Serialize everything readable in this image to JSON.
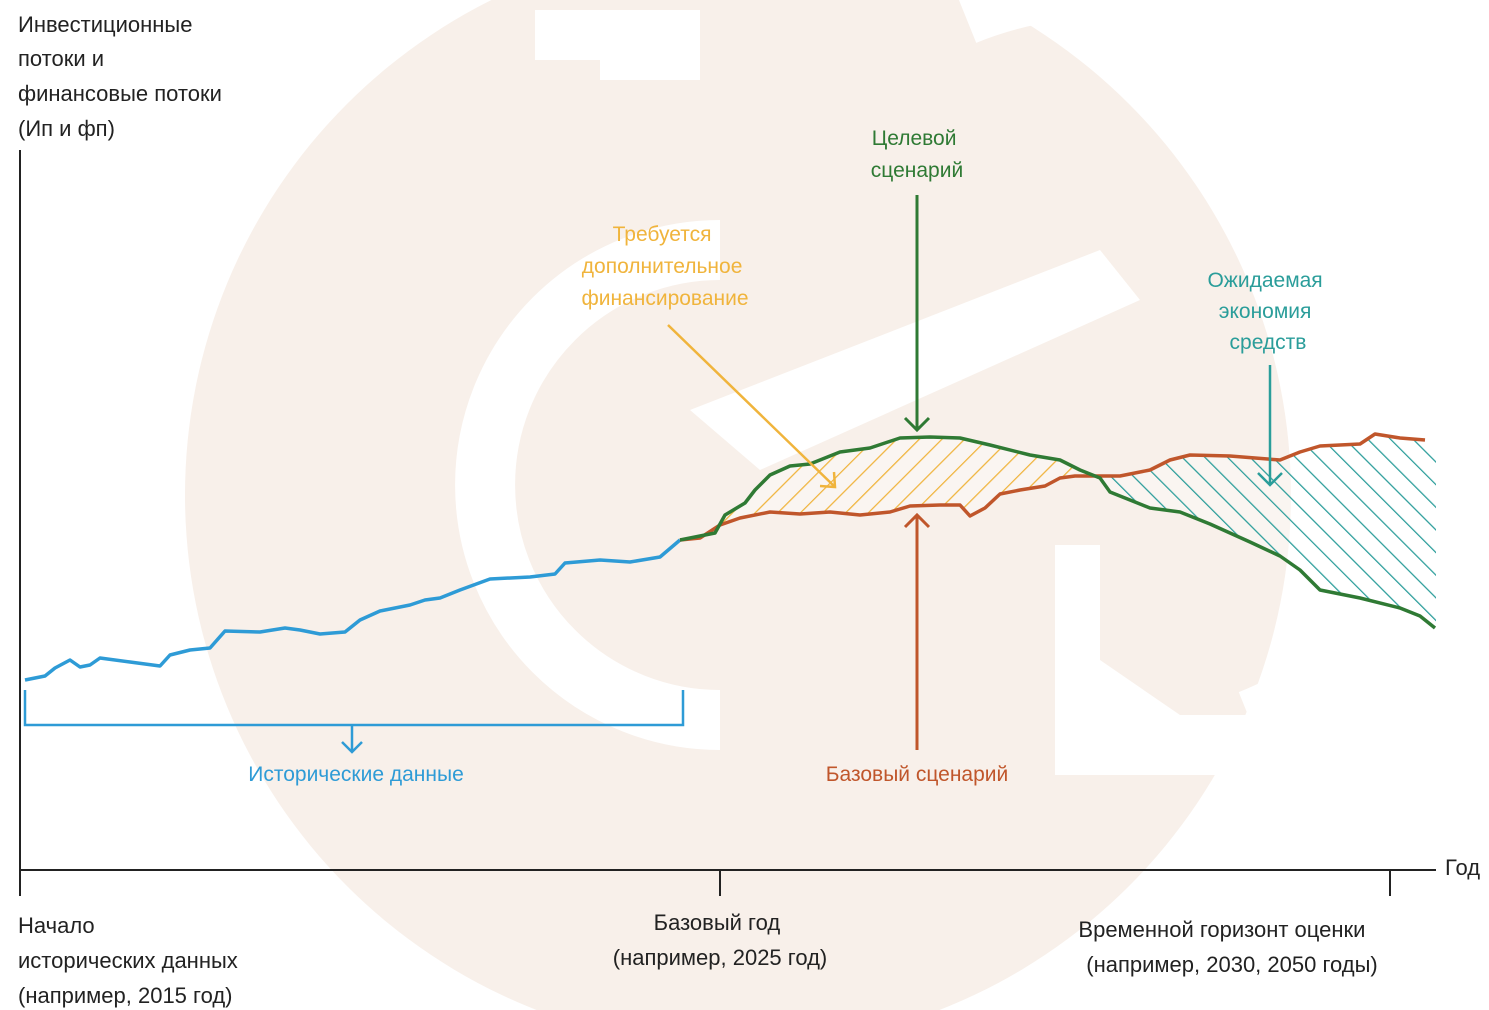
{
  "y_axis_label": [
    "Инвестиционные",
    "потоки и",
    "финансовые потоки",
    "(Ип и фп)"
  ],
  "x_axis_label": "Год",
  "x_ticks": [
    [
      "Начало",
      "исторических данных",
      "(например, 2015 год)"
    ],
    [
      "Базовый год",
      "(например, 2025 год)"
    ],
    [
      "Временной горизонт оценки",
      "(например, 2030, 2050 годы)"
    ]
  ],
  "annotations": {
    "historical": "Исторические данные",
    "baseline": "Базовый сценарий",
    "target": [
      "Целевой",
      "сценарий"
    ],
    "additional_financing": [
      "Требуется",
      "дополнительное",
      "финансирование"
    ],
    "expected_savings": [
      "Ожидаемая",
      "экономия",
      "средств"
    ]
  }
}
